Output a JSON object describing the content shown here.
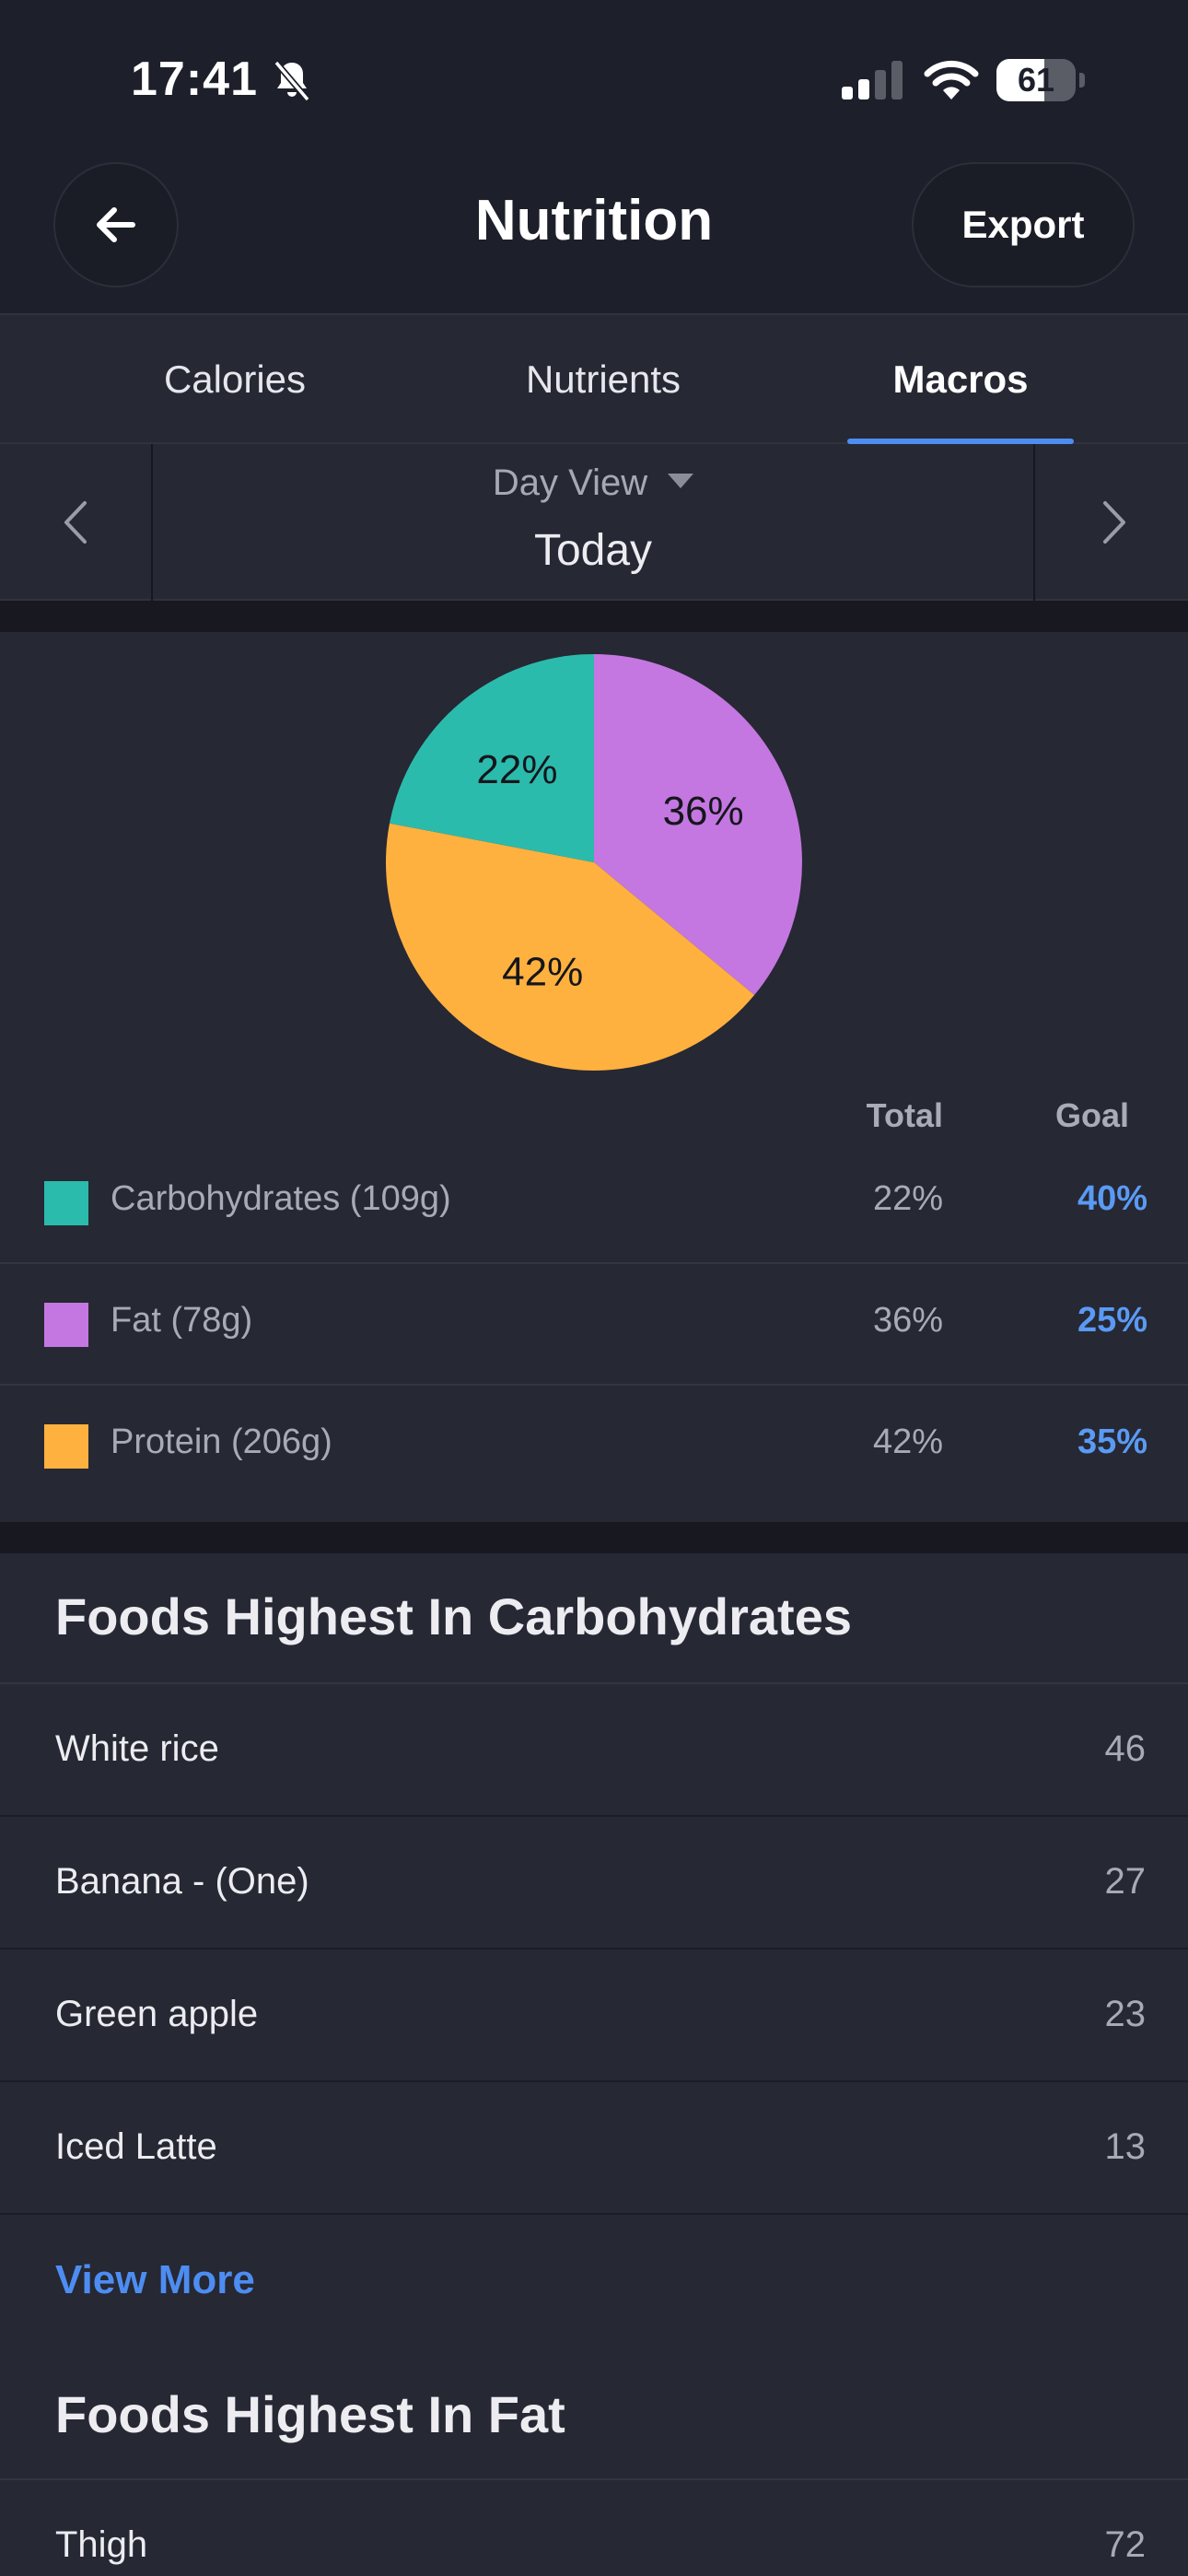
{
  "status_bar": {
    "time": "17:41",
    "battery": "61",
    "battery_level": 0.61,
    "icons": [
      "bell-slash-icon",
      "cellular-signal-icon",
      "wifi-icon",
      "battery-icon"
    ]
  },
  "header": {
    "title": "Nutrition",
    "back_icon": "arrow-left-icon",
    "export_label": "Export"
  },
  "tabs": [
    {
      "label": "Calories",
      "active": false
    },
    {
      "label": "Nutrients",
      "active": false
    },
    {
      "label": "Macros",
      "active": true
    }
  ],
  "date_nav": {
    "mode": "Day View",
    "date": "Today",
    "prev_icon": "chevron-left-icon",
    "next_icon": "chevron-right-icon"
  },
  "colors": {
    "carbohydrates": "#2bbbad",
    "fat": "#c477e0",
    "protein": "#ffb13f",
    "accent": "#4d8df2"
  },
  "chart_data": {
    "type": "pie",
    "slices": [
      {
        "label": "Fat",
        "value": 36,
        "display": "36%",
        "color": "#c477e0"
      },
      {
        "label": "Protein",
        "value": 42,
        "display": "42%",
        "color": "#ffb13f"
      },
      {
        "label": "Carbohydrates",
        "value": 22,
        "display": "22%",
        "color": "#2bbbad"
      }
    ]
  },
  "macros": {
    "headers": {
      "total": "Total",
      "goal": "Goal"
    },
    "rows": [
      {
        "name": "Carbohydrates (109g)",
        "total": "22%",
        "goal": "40%",
        "color": "#2bbbad"
      },
      {
        "name": "Fat (78g)",
        "total": "36%",
        "goal": "25%",
        "color": "#c477e0"
      },
      {
        "name": "Protein (206g)",
        "total": "42%",
        "goal": "35%",
        "color": "#ffb13f"
      }
    ]
  },
  "carbs_section": {
    "title": "Foods Highest In Carbohydrates",
    "items": [
      {
        "name": "White rice",
        "value": "46"
      },
      {
        "name": "Banana - (One)",
        "value": "27"
      },
      {
        "name": "Green apple",
        "value": "23"
      },
      {
        "name": "Iced Latte",
        "value": "13"
      }
    ],
    "view_more": "View More"
  },
  "fat_section": {
    "title": "Foods Highest In Fat",
    "items": [
      {
        "name": "Thigh",
        "value": "72"
      }
    ]
  }
}
